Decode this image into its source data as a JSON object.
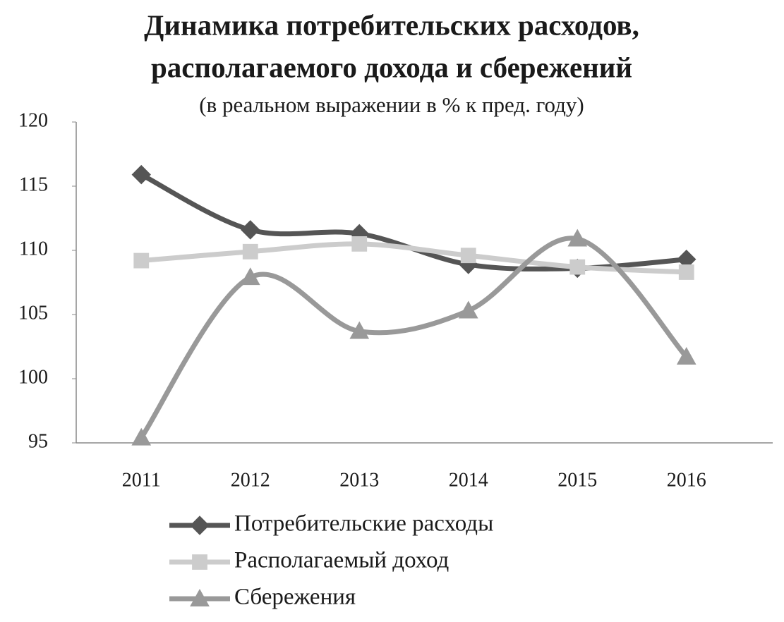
{
  "chart_data": {
    "type": "line",
    "title": [
      "Динамика потребительских расходов,",
      "располагаемого дохода и сбережений"
    ],
    "subtitle": "(в реальном выражении в % к пред. году)",
    "categories": [
      "2011",
      "2012",
      "2013",
      "2014",
      "2015",
      "2016"
    ],
    "series": [
      {
        "name": "Потребительские расходы",
        "color": "#555555",
        "marker": "diamond",
        "values": [
          115.9,
          111.6,
          111.3,
          108.9,
          108.6,
          109.3
        ]
      },
      {
        "name": "Располагаемый доход",
        "color": "#cccccc",
        "marker": "square",
        "values": [
          109.2,
          109.9,
          110.5,
          109.6,
          108.7,
          108.3
        ]
      },
      {
        "name": "Сбережения",
        "color": "#999999",
        "marker": "triangle",
        "values": [
          95.4,
          107.9,
          103.7,
          105.3,
          110.9,
          101.7
        ]
      }
    ],
    "ylim": [
      95,
      120
    ],
    "yticks": [
      95,
      100,
      105,
      110,
      115,
      120
    ],
    "grid": false,
    "smooth": true,
    "legend": "bottom"
  }
}
